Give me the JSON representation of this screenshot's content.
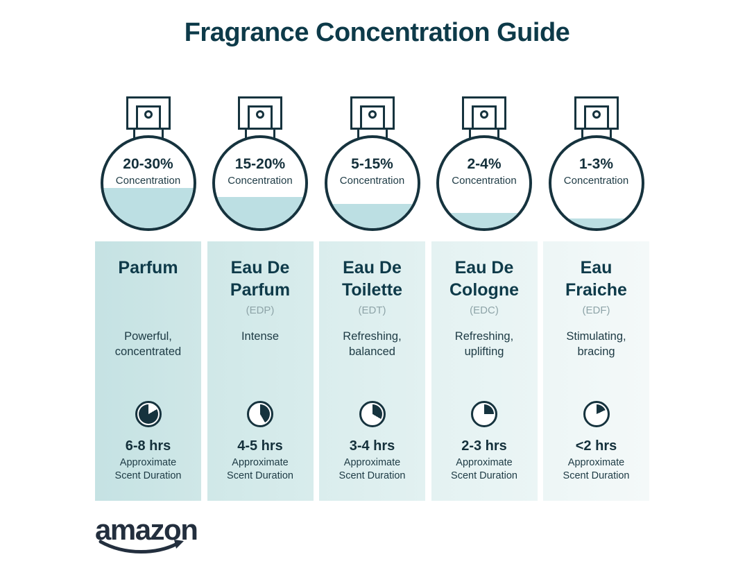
{
  "page": {
    "title": "Fragrance Concentration Guide"
  },
  "brand": {
    "name": "amazon"
  },
  "colors": {
    "dark": "#16333e",
    "heading": "#0e3a49",
    "liquid": "#bcdfe3",
    "abbr_gray": "#8ea4a8",
    "logo": "#232f3e"
  },
  "columns": [
    {
      "concentration": "20-30%",
      "concentration_label": "Concentration",
      "fill_percent": 45,
      "name_line1": "Parfum",
      "name_line2": "",
      "abbr": "",
      "desc_line1": "Powerful,",
      "desc_line2": "concentrated",
      "duration": "6-8 hrs",
      "note_line1": "Approximate",
      "note_line2": "Scent Duration",
      "clock": {
        "start": 60,
        "sweep": 300
      },
      "bg_left": "#c5e2e3",
      "bg_right": "#cfe7e7"
    },
    {
      "concentration": "15-20%",
      "concentration_label": "Concentration",
      "fill_percent": 35,
      "name_line1": "Eau De",
      "name_line2": "Parfum",
      "abbr": "(EDP)",
      "desc_line1": "Intense",
      "desc_line2": "",
      "duration": "4-5 hrs",
      "note_line1": "Approximate",
      "note_line2": "Scent Duration",
      "clock": {
        "start": 0,
        "sweep": 150
      },
      "bg_left": "#d0e8e8",
      "bg_right": "#d8ecec"
    },
    {
      "concentration": "5-15%",
      "concentration_label": "Concentration",
      "fill_percent": 27,
      "name_line1": "Eau De",
      "name_line2": "Toilette",
      "abbr": "(EDT)",
      "desc_line1": "Refreshing,",
      "desc_line2": "balanced",
      "duration": "3-4 hrs",
      "note_line1": "Approximate",
      "note_line2": "Scent Duration",
      "clock": {
        "start": 0,
        "sweep": 120
      },
      "bg_left": "#daeded",
      "bg_right": "#e2f1f1"
    },
    {
      "concentration": "2-4%",
      "concentration_label": "Concentration",
      "fill_percent": 17,
      "name_line1": "Eau De",
      "name_line2": "Cologne",
      "abbr": "(EDC)",
      "desc_line1": "Refreshing,",
      "desc_line2": "uplifting",
      "duration": "2-3 hrs",
      "note_line1": "Approximate",
      "note_line2": "Scent Duration",
      "clock": {
        "start": 0,
        "sweep": 90
      },
      "bg_left": "#e4f2f2",
      "bg_right": "#ebf5f5"
    },
    {
      "concentration": "1-3%",
      "concentration_label": "Concentration",
      "fill_percent": 11,
      "name_line1": "Eau",
      "name_line2": "Fraiche",
      "abbr": "(EDF)",
      "desc_line1": "Stimulating,",
      "desc_line2": "bracing",
      "duration": "<2 hrs",
      "note_line1": "Approximate",
      "note_line2": "Scent Duration",
      "clock": {
        "start": 0,
        "sweep": 65
      },
      "bg_left": "#edf6f6",
      "bg_right": "#f4f9f9"
    }
  ]
}
